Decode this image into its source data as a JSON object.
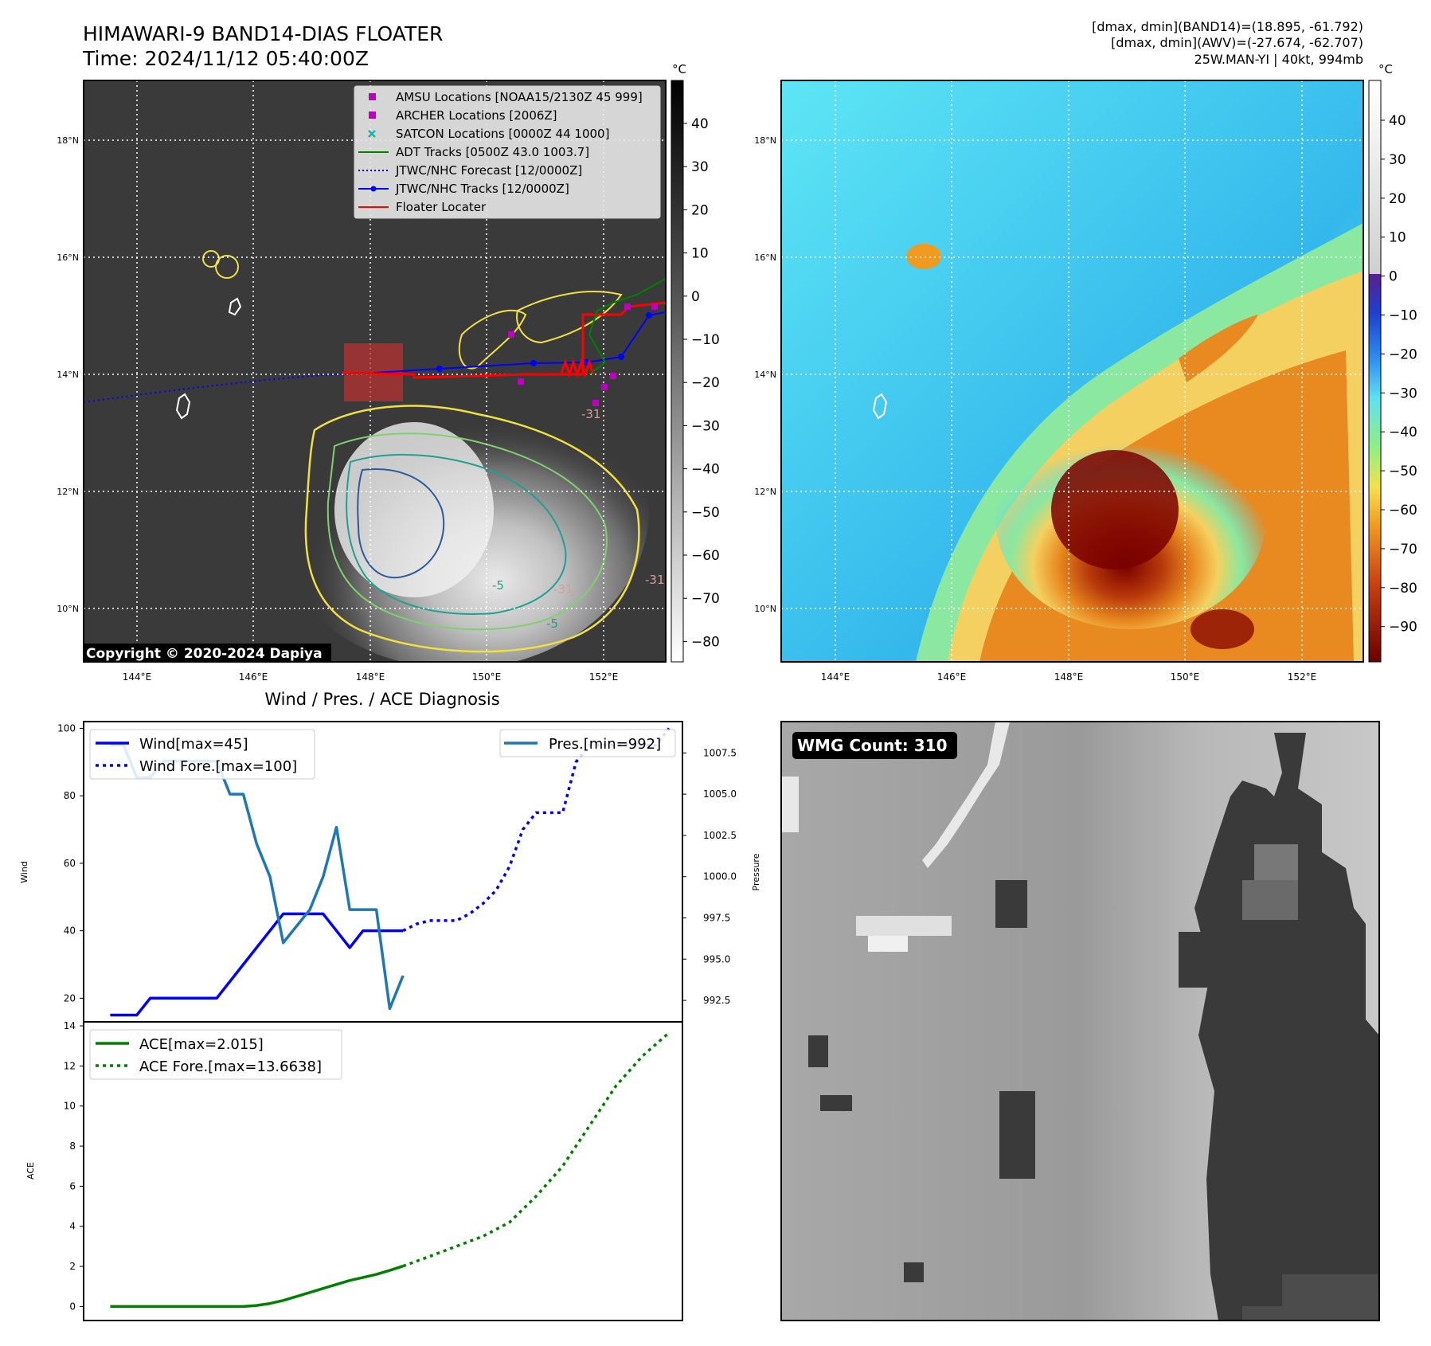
{
  "header": {
    "title_line1": "HIMAWARI-9 BAND14-DIAS FLOATER",
    "title_line2": "Time: 2024/11/12 05:40:00Z",
    "stats_line1": "[dmax, dmin](BAND14)=(18.895, -61.792)",
    "stats_line2": "[dmax, dmin](AWV)=(-27.674, -62.707)",
    "stats_line3": "25W.MAN-YI | 40kt, 994mb"
  },
  "map_left": {
    "copyright": "Copyright © 2020-2024 Dapiya",
    "colorbar_unit": "°C",
    "colorbar_ticks": [
      "40",
      "30",
      "20",
      "10",
      "0",
      "−10",
      "−20",
      "−30",
      "−40",
      "−50",
      "−60",
      "−70",
      "−80"
    ],
    "lat_labels": [
      "18°N",
      "16°N",
      "14°N",
      "12°N",
      "10°N"
    ],
    "lon_labels": [
      "144°E",
      "146°E",
      "148°E",
      "150°E",
      "152°E"
    ],
    "legend": [
      {
        "label": "AMSU Locations [NOAA15/2130Z 45 999]",
        "color": "#c000c0",
        "marker": "square"
      },
      {
        "label": "ARCHER Locations [2006Z]",
        "color": "#c000c0",
        "marker": "square"
      },
      {
        "label": "SATCON Locations [0000Z 44 1000]",
        "color": "#20b0b0",
        "marker": "x"
      },
      {
        "label": "ADT Tracks [0500Z 43.0 1003.7]",
        "color": "#008000",
        "marker": "line"
      },
      {
        "label": "JTWC/NHC Forecast [12/0000Z]",
        "color": "#0000ff",
        "marker": "dotted"
      },
      {
        "label": "JTWC/NHC Tracks [12/0000Z]",
        "color": "#0000ff",
        "marker": "line-dot"
      },
      {
        "label": "Floater Locater",
        "color": "#ff0000",
        "marker": "line"
      }
    ],
    "contour_labels": [
      "-31",
      "-31",
      "-31",
      "-5",
      "-5"
    ]
  },
  "map_right": {
    "colorbar_unit": "°C",
    "colorbar_ticks": [
      "40",
      "30",
      "20",
      "10",
      "0",
      "−10",
      "−20",
      "−30",
      "−40",
      "−50",
      "−60",
      "−70",
      "−80",
      "−90"
    ],
    "lat_labels": [
      "18°N",
      "16°N",
      "14°N",
      "12°N",
      "10°N"
    ],
    "lon_labels": [
      "144°E",
      "146°E",
      "148°E",
      "150°E",
      "152°E"
    ]
  },
  "wmg": {
    "badge": "WMG Count: 310"
  },
  "chart_data": [
    {
      "type": "line",
      "title": "Wind / Pres. / ACE Diagnosis",
      "ylabel": "Wind",
      "ylabel_right": "Pressure",
      "ylim": [
        13,
        102
      ],
      "ylim_right": [
        991.2,
        1009.4
      ],
      "yticks": [
        "100",
        "80",
        "60",
        "40",
        "20"
      ],
      "yticks_right": [
        "1007.5",
        "1005.0",
        "1002.5",
        "1000.0",
        "997.5",
        "995.0",
        "992.5"
      ],
      "xlim": [
        -2,
        43
      ],
      "series": [
        {
          "name": "Wind[max=45]",
          "color": "#0000ff",
          "style": "solid",
          "axis": "left",
          "x": [
            0,
            1,
            2,
            3,
            4,
            5,
            6,
            7,
            8,
            9,
            10,
            11,
            12,
            13,
            14,
            15,
            16,
            17,
            18,
            19,
            20,
            21,
            22
          ],
          "y": [
            15,
            15,
            15,
            20,
            20,
            20,
            20,
            20,
            20,
            25,
            30,
            35,
            40,
            45,
            45,
            45,
            45,
            40,
            35,
            40,
            40,
            40,
            40
          ]
        },
        {
          "name": "Wind Fore.[max=100]",
          "color": "#0000ff",
          "style": "dotted",
          "axis": "left",
          "x": [
            22,
            23,
            24,
            25,
            26,
            27,
            28,
            29,
            30,
            31,
            32,
            33,
            34,
            35,
            36,
            37,
            38,
            39,
            40,
            41,
            42
          ],
          "y": [
            40,
            42,
            43,
            43,
            43,
            45,
            48,
            52,
            59,
            70,
            75,
            75,
            75,
            90,
            95,
            95,
            95,
            95,
            95,
            95,
            100
          ]
        },
        {
          "name": "Pres.[min=992]",
          "color": "#1f77b4",
          "style": "solid",
          "axis": "right",
          "x": [
            0,
            1,
            2,
            3,
            4,
            5,
            6,
            7,
            8,
            9,
            10,
            11,
            12,
            13,
            14,
            15,
            16,
            17,
            18,
            19,
            20,
            21,
            22
          ],
          "y": [
            1008,
            1008,
            1006,
            1006,
            1007,
            1007,
            1007,
            1007,
            1007,
            1005,
            1005,
            1002,
            1000,
            996,
            997,
            998,
            1000,
            1003,
            998,
            998,
            998,
            992,
            994
          ]
        }
      ]
    },
    {
      "type": "line",
      "ylabel": "ACE",
      "ylim": [
        -0.7,
        14.2
      ],
      "yticks": [
        "14",
        "12",
        "10",
        "8",
        "6",
        "4",
        "2",
        "0"
      ],
      "xlim": [
        -2,
        43
      ],
      "series": [
        {
          "name": "ACE[max=2.015]",
          "color": "#008000",
          "style": "solid",
          "x": [
            0,
            2,
            4,
            6,
            8,
            10,
            11,
            12,
            13,
            14,
            15,
            16,
            17,
            18,
            19,
            20,
            21,
            22
          ],
          "y": [
            0,
            0,
            0,
            0,
            0,
            0,
            0.05,
            0.15,
            0.3,
            0.5,
            0.7,
            0.9,
            1.1,
            1.3,
            1.45,
            1.6,
            1.8,
            2.015
          ]
        },
        {
          "name": "ACE Fore.[max=13.6638]",
          "color": "#008000",
          "style": "dotted",
          "x": [
            22,
            24,
            26,
            28,
            30,
            32,
            34,
            36,
            38,
            40,
            42
          ],
          "y": [
            2.015,
            2.5,
            3.0,
            3.5,
            4.2,
            5.5,
            7.0,
            9.0,
            11.0,
            12.5,
            13.6638
          ]
        }
      ]
    }
  ]
}
